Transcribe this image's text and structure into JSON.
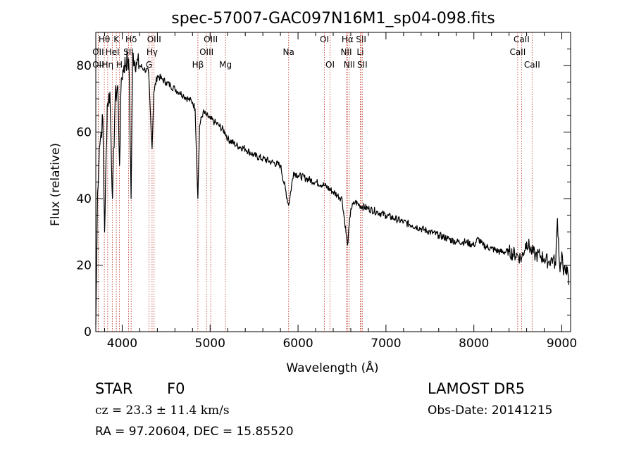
{
  "chart_data": {
    "type": "line",
    "title": "spec-57007-GAC097N16M1_sp04-098.fits",
    "xlabel": "Wavelength (Å)",
    "ylabel": "Flux (relative)",
    "xlim": [
      3700,
      9100
    ],
    "ylim": [
      0,
      90
    ],
    "xticks": [
      4000,
      5000,
      6000,
      7000,
      8000,
      9000
    ],
    "yticks": [
      0,
      20,
      40,
      60,
      80
    ],
    "grid": false,
    "series": [
      {
        "x": [
          3700,
          3720,
          3740,
          3760,
          3780,
          3800,
          3830,
          3860,
          3890,
          3920,
          3950,
          3970,
          3990,
          4020,
          4060,
          4080,
          4101,
          4120,
          4160,
          4200,
          4250,
          4300,
          4340,
          4360,
          4400,
          4450,
          4500,
          4550,
          4600,
          4650,
          4700,
          4750,
          4800,
          4830,
          4861,
          4880,
          4920,
          4960,
          5000,
          5050,
          5100,
          5170,
          5200,
          5300,
          5400,
          5500,
          5600,
          5700,
          5800,
          5893,
          5950,
          6000,
          6100,
          6200,
          6300,
          6400,
          6450,
          6500,
          6563,
          6600,
          6650,
          6700,
          6800,
          6900,
          7000,
          7100,
          7200,
          7300,
          7400,
          7500,
          7600,
          7700,
          7800,
          7900,
          8000,
          8050,
          8100,
          8200,
          8300,
          8400,
          8498,
          8542,
          8600,
          8662,
          8700,
          8750,
          8800,
          8850,
          8900,
          8930,
          8950,
          8980,
          9000,
          9020,
          9050,
          9080
        ],
        "values": [
          2,
          42,
          55,
          60,
          64,
          30,
          68,
          72,
          40,
          70,
          74,
          50,
          76,
          80,
          82,
          78,
          40,
          83,
          81,
          80,
          79,
          78,
          55,
          72,
          77,
          76,
          75,
          74,
          73,
          72,
          71,
          70,
          69,
          67,
          40,
          62,
          66,
          65,
          64,
          63,
          62,
          60,
          58,
          56,
          55,
          53,
          52,
          51,
          50,
          38,
          48,
          47,
          46,
          45,
          44,
          42,
          41,
          40,
          26,
          37,
          39,
          38,
          37,
          36,
          35,
          34,
          33,
          32,
          31,
          30,
          29,
          28,
          27,
          27,
          26,
          28,
          26,
          25,
          24,
          24,
          23,
          22,
          27,
          24,
          23,
          23,
          22,
          21,
          22,
          20,
          34,
          18,
          24,
          17,
          20,
          14
        ]
      }
    ],
    "spectral_lines": [
      {
        "label": "Hθ",
        "x": 3797,
        "row": 1
      },
      {
        "label": "OII",
        "x": 3727,
        "row": 2
      },
      {
        "label": "OII",
        "x": 3727,
        "row": 3
      },
      {
        "label": "K",
        "x": 3934,
        "row": 1
      },
      {
        "label": "HeI",
        "x": 3889,
        "row": 2
      },
      {
        "label": "Hη",
        "x": 3835,
        "row": 3
      },
      {
        "label": "H",
        "x": 3969,
        "row": 3
      },
      {
        "label": "Hδ",
        "x": 4102,
        "row": 1
      },
      {
        "label": "SII",
        "x": 4072,
        "row": 2
      },
      {
        "label": "OIII",
        "x": 4363,
        "row": 1
      },
      {
        "label": "Hγ",
        "x": 4340,
        "row": 2
      },
      {
        "label": "G",
        "x": 4305,
        "row": 3
      },
      {
        "label": "OIII",
        "x": 5007,
        "row": 1
      },
      {
        "label": "OIII",
        "x": 4959,
        "row": 2
      },
      {
        "label": "Hβ",
        "x": 4861,
        "row": 3
      },
      {
        "label": "Mg",
        "x": 5175,
        "row": 3
      },
      {
        "label": "Na",
        "x": 5893,
        "row": 2
      },
      {
        "label": "OI",
        "x": 6300,
        "row": 1
      },
      {
        "label": "OI",
        "x": 6364,
        "row": 3
      },
      {
        "label": "Hα",
        "x": 6563,
        "row": 1
      },
      {
        "label": "SII",
        "x": 6717,
        "row": 1
      },
      {
        "label": "NII",
        "x": 6548,
        "row": 2
      },
      {
        "label": "Li",
        "x": 6708,
        "row": 2
      },
      {
        "label": "NII",
        "x": 6583,
        "row": 3
      },
      {
        "label": "SII",
        "x": 6731,
        "row": 3
      },
      {
        "label": "CaII",
        "x": 8542,
        "row": 1
      },
      {
        "label": "CaII",
        "x": 8498,
        "row": 2
      },
      {
        "label": "CaII",
        "x": 8662,
        "row": 3
      }
    ]
  },
  "info": {
    "class": "STAR",
    "subclass": "F0",
    "cz": "cz = 23.3 ± 11.4 km/s",
    "radec": "RA =  97.20604, DEC =  15.85520",
    "survey": "LAMOST DR5",
    "obs_date": "Obs-Date: 20141215"
  }
}
